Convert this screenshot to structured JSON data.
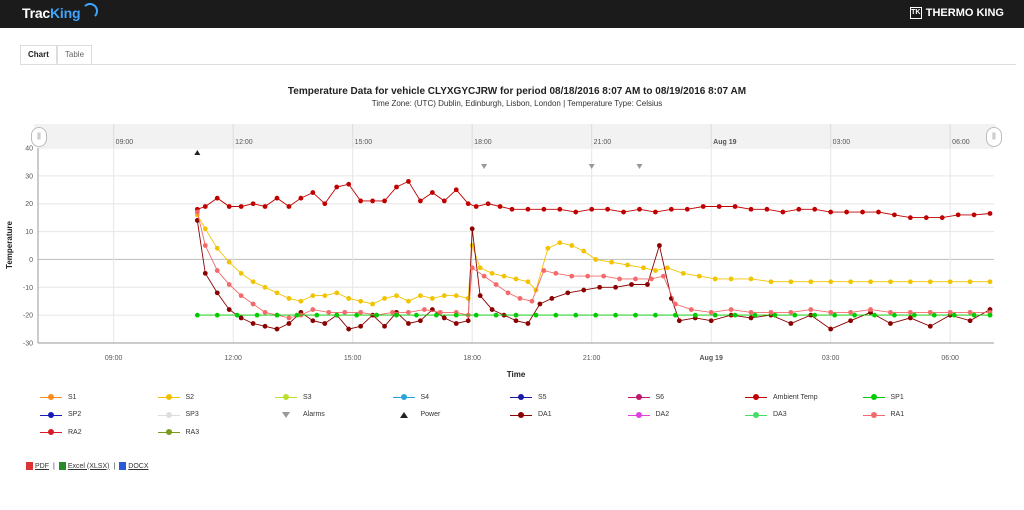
{
  "header": {
    "brand_left_1": "Trac",
    "brand_left_2": "King",
    "brand_right": "THERMO KING",
    "brand_right_icon": "TK"
  },
  "tabs": [
    {
      "label": "Chart",
      "active": true
    },
    {
      "label": "Table",
      "active": false
    }
  ],
  "chart_data": {
    "type": "line",
    "title": "Temperature Data for vehicle CLYXGYCJRW for period 08/18/2016 8:07 AM to 08/19/2016 8:07 AM",
    "subtitle": "Time Zone: (UTC) Dublin, Edinburgh, Lisbon, London | Temperature Type: Celsius",
    "xlabel": "Time",
    "ylabel": "Temperature",
    "ylim": [
      -30,
      40
    ],
    "yticks": [
      40,
      30,
      20,
      10,
      0,
      -10,
      -20,
      -30
    ],
    "xlim_hours": [
      7.1,
      31.1
    ],
    "xticks": [
      {
        "h": 9,
        "label": "09:00",
        "bold": false
      },
      {
        "h": 12,
        "label": "12:00",
        "bold": false
      },
      {
        "h": 15,
        "label": "15:00",
        "bold": false
      },
      {
        "h": 18,
        "label": "18:00",
        "bold": false
      },
      {
        "h": 21,
        "label": "21:00",
        "bold": false
      },
      {
        "h": 24,
        "label": "Aug 19",
        "bold": true
      },
      {
        "h": 27,
        "label": "03:00",
        "bold": false
      },
      {
        "h": 30,
        "label": "06:00",
        "bold": false
      }
    ],
    "grid": true,
    "legend_position": "bottom",
    "markers": {
      "power": [
        11.1
      ],
      "alarms": [
        18.3,
        21.0,
        22.2
      ]
    },
    "series": [
      {
        "name": "Ambient Temp",
        "color": "#c00000",
        "x": [
          11.1,
          11.3,
          11.6,
          11.9,
          12.2,
          12.5,
          12.8,
          13.1,
          13.4,
          13.7,
          14.0,
          14.3,
          14.6,
          14.9,
          15.2,
          15.5,
          15.8,
          16.1,
          16.4,
          16.7,
          17.0,
          17.3,
          17.6,
          17.9,
          18.1,
          18.4,
          18.7,
          19.0,
          19.4,
          19.8,
          20.2,
          20.6,
          21.0,
          21.4,
          21.8,
          22.2,
          22.6,
          23.0,
          23.4,
          23.8,
          24.2,
          24.6,
          25.0,
          25.4,
          25.8,
          26.2,
          26.6,
          27.0,
          27.4,
          27.8,
          28.2,
          28.6,
          29.0,
          29.4,
          29.8,
          30.2,
          30.6,
          31.0
        ],
        "values": [
          18,
          19,
          22,
          19,
          19,
          20,
          19,
          22,
          19,
          22,
          24,
          20,
          26,
          27,
          21,
          21,
          21,
          26,
          28,
          21,
          24,
          21,
          25,
          20,
          19,
          20,
          19,
          18,
          18,
          18,
          18,
          17,
          18,
          18,
          17,
          18,
          17,
          18,
          18,
          19,
          19,
          19,
          18,
          18,
          17,
          18,
          18,
          17,
          17,
          17,
          17,
          16,
          15,
          15,
          15,
          16,
          16,
          16.5
        ]
      },
      {
        "name": "S2",
        "color": "#f2c300",
        "x": [
          11.1,
          11.3,
          11.6,
          11.9,
          12.2,
          12.5,
          12.8,
          13.1,
          13.4,
          13.7,
          14.0,
          14.3,
          14.6,
          14.9,
          15.2,
          15.5,
          15.8,
          16.1,
          16.4,
          16.7,
          17.0,
          17.3,
          17.6,
          17.9,
          18.0,
          18.2,
          18.5,
          18.8,
          19.1,
          19.4,
          19.6,
          19.9,
          20.2,
          20.5,
          20.8,
          21.1,
          21.5,
          21.9,
          22.3,
          22.6,
          22.9,
          23.3,
          23.7,
          24.1,
          24.5,
          25.0,
          25.5,
          26.0,
          26.5,
          27.0,
          27.5,
          28.0,
          28.5,
          29.0,
          29.5,
          30.0,
          30.5,
          31.0
        ],
        "values": [
          16,
          11,
          4,
          -1,
          -5,
          -8,
          -10,
          -12,
          -14,
          -15,
          -13,
          -13,
          -12,
          -14,
          -15,
          -16,
          -14,
          -13,
          -15,
          -13,
          -14,
          -13,
          -13,
          -14,
          5,
          -3,
          -5,
          -6,
          -7,
          -8,
          -11,
          4,
          6,
          5,
          3,
          0,
          -1,
          -2,
          -3,
          -4,
          -3,
          -5,
          -6,
          -7,
          -7,
          -7,
          -8,
          -8,
          -8,
          -8,
          -8,
          -8,
          -8,
          -8,
          -8,
          -8,
          -8,
          -8
        ]
      },
      {
        "name": "DA1",
        "color": "#8b0000",
        "x": [
          11.1,
          11.3,
          11.6,
          11.9,
          12.2,
          12.5,
          12.8,
          13.1,
          13.4,
          13.7,
          14.0,
          14.3,
          14.6,
          14.9,
          15.2,
          15.5,
          15.8,
          16.1,
          16.4,
          16.7,
          17.0,
          17.3,
          17.6,
          17.9,
          18.0,
          18.2,
          18.5,
          18.8,
          19.1,
          19.4,
          19.7,
          20.0,
          20.4,
          20.8,
          21.2,
          21.6,
          22.0,
          22.4,
          22.7,
          23.0,
          23.2,
          23.6,
          24.0,
          24.5,
          25.0,
          25.5,
          26.0,
          26.5,
          27.0,
          27.5,
          28.0,
          28.5,
          29.0,
          29.5,
          30.0,
          30.5,
          31.0
        ],
        "values": [
          14,
          -5,
          -12,
          -18,
          -21,
          -23,
          -24,
          -25,
          -23,
          -19,
          -22,
          -23,
          -20,
          -25,
          -24,
          -20,
          -24,
          -19,
          -23,
          -22,
          -18,
          -21,
          -23,
          -22,
          11,
          -13,
          -18,
          -20,
          -22,
          -23,
          -16,
          -14,
          -12,
          -11,
          -10,
          -10,
          -9,
          -9,
          5,
          -14,
          -22,
          -21,
          -22,
          -20,
          -21,
          -20,
          -23,
          -20,
          -25,
          -22,
          -19,
          -23,
          -21,
          -24,
          -20,
          -22,
          -18
        ]
      },
      {
        "name": "RA1",
        "color": "#f46a6a",
        "x": [
          11.1,
          11.3,
          11.6,
          11.9,
          12.2,
          12.5,
          12.8,
          13.1,
          13.4,
          13.7,
          14.0,
          14.4,
          14.8,
          15.2,
          15.6,
          16.0,
          16.4,
          16.8,
          17.2,
          17.6,
          17.9,
          18.0,
          18.3,
          18.6,
          18.9,
          19.2,
          19.5,
          19.8,
          20.1,
          20.5,
          20.9,
          21.3,
          21.7,
          22.1,
          22.5,
          22.8,
          23.1,
          23.5,
          24.0,
          24.5,
          25.0,
          25.5,
          26.0,
          26.5,
          27.0,
          27.5,
          28.0,
          28.5,
          29.0,
          29.5,
          30.0,
          30.5,
          31.0
        ],
        "values": [
          17,
          5,
          -4,
          -9,
          -13,
          -16,
          -19,
          -20,
          -21,
          -20,
          -18,
          -19,
          -19,
          -19,
          -20,
          -19,
          -19,
          -18,
          -19,
          -19,
          -20,
          -3,
          -6,
          -9,
          -12,
          -14,
          -15,
          -4,
          -5,
          -6,
          -6,
          -6,
          -7,
          -7,
          -7,
          -6,
          -16,
          -18,
          -19,
          -18,
          -19,
          -19,
          -19,
          -18,
          -19,
          -19,
          -18,
          -19,
          -19,
          -19,
          -19,
          -19,
          -19
        ]
      },
      {
        "name": "SP1",
        "color": "#00cc00",
        "x": [
          11.1,
          11.6,
          12.1,
          12.6,
          13.1,
          13.6,
          14.1,
          14.6,
          15.1,
          15.6,
          16.1,
          16.6,
          17.1,
          17.6,
          18.1,
          18.6,
          19.1,
          19.6,
          20.1,
          20.6,
          21.1,
          21.6,
          22.1,
          22.6,
          23.1,
          23.6,
          24.1,
          24.6,
          25.1,
          25.6,
          26.1,
          26.6,
          27.1,
          27.6,
          28.1,
          28.6,
          29.1,
          29.6,
          30.1,
          30.6,
          31.0
        ],
        "values": [
          -20,
          -20,
          -20,
          -20,
          -20,
          -20,
          -20,
          -20,
          -20,
          -20,
          -20,
          -20,
          -20,
          -20,
          -20,
          -20,
          -20,
          -20,
          -20,
          -20,
          -20,
          -20,
          -20,
          -20,
          -20,
          -20,
          -20,
          -20,
          -20,
          -20,
          -20,
          -20,
          -20,
          -20,
          -20,
          -20,
          -20,
          -20,
          -20,
          -20,
          -20
        ]
      }
    ]
  },
  "legend": [
    {
      "label": "S1",
      "color": "#ff8c1a",
      "shape": "circle"
    },
    {
      "label": "S2",
      "color": "#f2c300",
      "shape": "circle"
    },
    {
      "label": "S3",
      "color": "#b9e02a",
      "shape": "circle"
    },
    {
      "label": "S4",
      "color": "#2aa7d8",
      "shape": "circle"
    },
    {
      "label": "S5",
      "color": "#1a1aa8",
      "shape": "circle"
    },
    {
      "label": "S6",
      "color": "#c2186b",
      "shape": "circle"
    },
    {
      "label": "Ambient Temp",
      "color": "#c00000",
      "shape": "circle"
    },
    {
      "label": "SP1",
      "color": "#00cc00",
      "shape": "circle"
    },
    {
      "label": "SP2",
      "color": "#1a1ab8",
      "shape": "circle"
    },
    {
      "label": "SP3",
      "color": "#dddddd",
      "shape": "circle"
    },
    {
      "label": "Alarms",
      "color": "#999999",
      "shape": "triangle-down"
    },
    {
      "label": "Power",
      "color": "#222222",
      "shape": "triangle-up"
    },
    {
      "label": "DA1",
      "color": "#8b0000",
      "shape": "circle"
    },
    {
      "label": "DA2",
      "color": "#e040e0",
      "shape": "circle"
    },
    {
      "label": "DA3",
      "color": "#44dd66",
      "shape": "circle"
    },
    {
      "label": "RA1",
      "color": "#f46a6a",
      "shape": "circle"
    },
    {
      "label": "RA2",
      "color": "#d81b2b",
      "shape": "circle"
    },
    {
      "label": "RA3",
      "color": "#7a9a1a",
      "shape": "circle"
    }
  ],
  "downloads": [
    {
      "label": "PDF",
      "color": "#d33"
    },
    {
      "label": "Excel (XLSX)",
      "color": "#2a8a2a"
    },
    {
      "label": "DOCX",
      "color": "#2a5ad8"
    }
  ]
}
